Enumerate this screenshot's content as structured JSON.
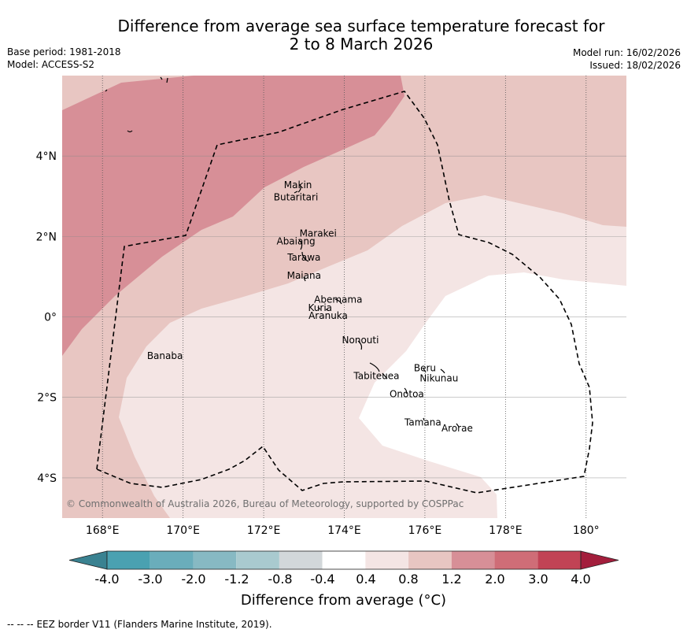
{
  "header": {
    "title_line1": "Difference from average sea surface temperature forecast for",
    "title_line2": "2 to 8 March 2026",
    "base_period": "Base period: 1981-2018",
    "model": "Model: ACCESS-S2",
    "model_run": "Model run: 16/02/2026",
    "issued": "Issued: 18/02/2026"
  },
  "map": {
    "lon_labels": [
      "168°E",
      "170°E",
      "172°E",
      "174°E",
      "176°E",
      "178°E",
      "180°"
    ],
    "lon_values": [
      168,
      170,
      172,
      174,
      176,
      178,
      180
    ],
    "lat_labels": [
      "4°N",
      "2°N",
      "0°",
      "2°S",
      "4°S"
    ],
    "lat_values": [
      4,
      2,
      0,
      -2,
      -4
    ],
    "extent": {
      "lon_min": 167,
      "lon_max": 181,
      "lat_min": -5,
      "lat_max": 6
    },
    "copyright": "© Commonwealth of Australia 2026, Bureau of Meteorology, supported by COSPPac",
    "places": [
      {
        "name": "Makin",
        "lon": 172.85,
        "lat": 3.2
      },
      {
        "name": "Butaritari",
        "lon": 172.8,
        "lat": 2.9
      },
      {
        "name": "Marakei",
        "lon": 173.35,
        "lat": 2.0
      },
      {
        "name": "Abaiang",
        "lon": 172.8,
        "lat": 1.8
      },
      {
        "name": "Tarawa",
        "lon": 173.0,
        "lat": 1.4
      },
      {
        "name": "Maiana",
        "lon": 173.0,
        "lat": 0.95
      },
      {
        "name": "Abemama",
        "lon": 173.85,
        "lat": 0.35
      },
      {
        "name": "Kuria",
        "lon": 173.4,
        "lat": 0.15
      },
      {
        "name": "Aranuka",
        "lon": 173.6,
        "lat": -0.05
      },
      {
        "name": "Nonouti",
        "lon": 174.4,
        "lat": -0.65
      },
      {
        "name": "Banaba",
        "lon": 169.55,
        "lat": -1.05
      },
      {
        "name": "Beru",
        "lon": 176.0,
        "lat": -1.35
      },
      {
        "name": "Nikunau",
        "lon": 176.35,
        "lat": -1.6
      },
      {
        "name": "Tabiteuea",
        "lon": 174.8,
        "lat": -1.55
      },
      {
        "name": "Onotoa",
        "lon": 175.55,
        "lat": -2.0
      },
      {
        "name": "Tamana",
        "lon": 175.95,
        "lat": -2.7
      },
      {
        "name": "Arorae",
        "lon": 176.8,
        "lat": -2.85
      }
    ]
  },
  "colorbar": {
    "labels": [
      "-4.0",
      "-3.0",
      "-2.0",
      "-1.2",
      "-0.8",
      "-0.4",
      "0.4",
      "0.8",
      "1.2",
      "2.0",
      "3.0",
      "4.0"
    ],
    "colors": [
      "#4aa1b1",
      "#6aadbb",
      "#87b9c3",
      "#a9cacf",
      "#d2d7da",
      "#ffffff",
      "#f4e5e4",
      "#e8c6c2",
      "#d78f97",
      "#cf6d77",
      "#c14355"
    ],
    "under_color": "#3a8291",
    "over_color": "#a31e3c",
    "title": "Difference from average (°C)"
  },
  "contour_levels": {
    "band_0.4_0.8": "#f4e5e4",
    "band_0.8_1.2": "#e8c6c2",
    "band_1.2_2.0": "#d78f97",
    "band_-0.4_0.4": "#ffffff"
  },
  "footer": {
    "legend_marker": "--  --  --",
    "legend_text": "EEZ border V11 (Flanders Marine Institute, 2019)."
  }
}
